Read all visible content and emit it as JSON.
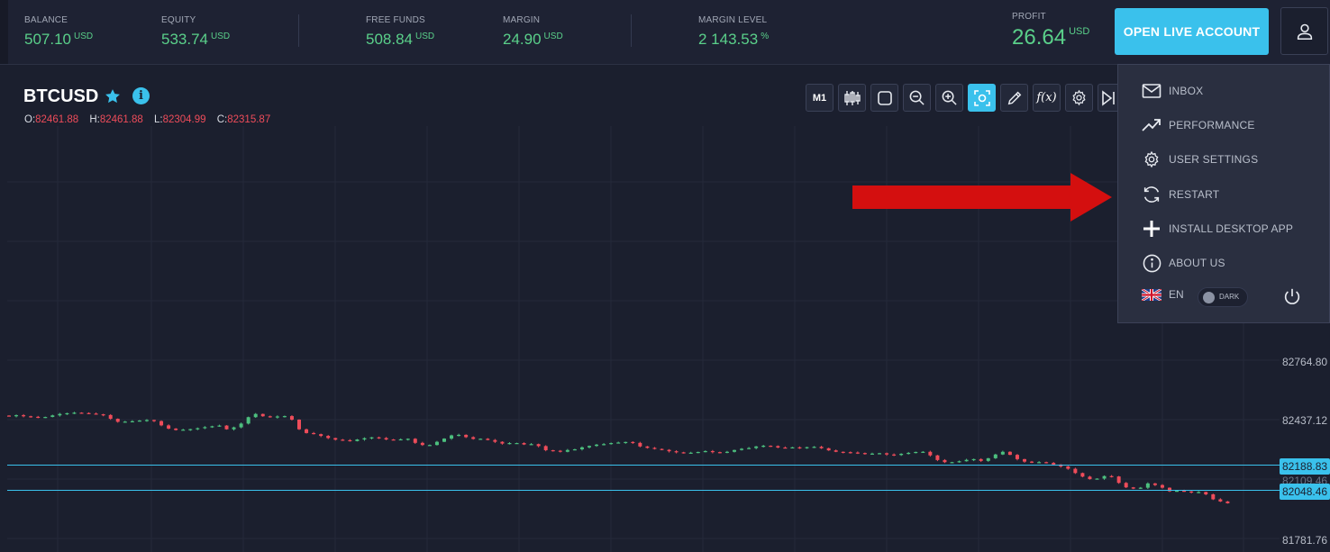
{
  "account_stats": {
    "balance": {
      "label": "BALANCE",
      "value": "507.10",
      "unit": "USD"
    },
    "equity": {
      "label": "EQUITY",
      "value": "533.74",
      "unit": "USD"
    },
    "free_funds": {
      "label": "FREE FUNDS",
      "value": "508.84",
      "unit": "USD"
    },
    "margin": {
      "label": "MARGIN",
      "value": "24.90",
      "unit": "USD"
    },
    "margin_level": {
      "label": "MARGIN LEVEL",
      "value": "2 143.53",
      "unit": "%"
    },
    "profit": {
      "label": "PROFIT",
      "value": "26.64",
      "unit": "USD"
    }
  },
  "header": {
    "open_live_label": "OPEN LIVE ACCOUNT",
    "user_icon": "user-icon"
  },
  "instrument": {
    "symbol": "BTCUSD",
    "ohlc": [
      {
        "key": "O:",
        "value": "82461.88"
      },
      {
        "key": "H:",
        "value": "82461.88"
      },
      {
        "key": "L:",
        "value": "82304.99"
      },
      {
        "key": "C:",
        "value": "82315.87"
      }
    ]
  },
  "toolbar": {
    "timeframe_label": "M1",
    "fx_label": "f(x)",
    "icons": [
      "candles-icon",
      "square-icon",
      "zoom-out-icon",
      "zoom-in-icon",
      "fit-screen-icon",
      "pencil-icon",
      "function-icon",
      "gear-icon",
      "skip-end-icon"
    ]
  },
  "menu": {
    "items": [
      {
        "label": "INBOX",
        "icon": "mail-icon"
      },
      {
        "label": "PERFORMANCE",
        "icon": "trend-up-icon"
      },
      {
        "label": "USER SETTINGS",
        "icon": "gear-icon"
      },
      {
        "label": "RESTART",
        "icon": "refresh-icon"
      },
      {
        "label": "INSTALL DESKTOP APP",
        "icon": "plus-icon"
      },
      {
        "label": "ABOUT US",
        "icon": "info-icon"
      }
    ],
    "language": "EN",
    "theme_label": "DARK",
    "power_icon": "power-icon"
  },
  "colors": {
    "accent": "#3ac1ec",
    "up": "#4cbf7e",
    "down": "#ee4c5a",
    "positive_text": "#5ad08a",
    "background": "#1b1f2e",
    "annotation_arrow": "#d40f0f"
  },
  "chart_data": {
    "type": "candlestick",
    "symbol": "BTCUSD",
    "y_tick_labels": [
      "82764.80",
      "82437.12",
      "81781.76"
    ],
    "price_lines": [
      "82188.83",
      "82048.46"
    ],
    "partially_hidden_label": "82109.46",
    "close_series": [
      82461.9,
      82467,
      82461,
      82458,
      82454,
      82457,
      82466,
      82474,
      82478,
      82481,
      82479,
      82476,
      82472,
      82468,
      82447,
      82430,
      82431,
      82433,
      82437,
      82440,
      82434,
      82410,
      82392,
      82384,
      82386,
      82389,
      82394,
      82400,
      82405,
      82409,
      82388,
      82399,
      82420,
      82456,
      82474,
      82461,
      82455,
      82460,
      82462,
      82442,
      82388,
      82367,
      82361,
      82351,
      82339,
      82330,
      82327,
      82322,
      82331,
      82338,
      82343,
      82339,
      82331,
      82329,
      82332,
      82335,
      82312,
      82300,
      82300,
      82318,
      82336,
      82354,
      82357,
      82344,
      82334,
      82335,
      82328,
      82318,
      82308,
      82311,
      82311,
      82303,
      82305,
      82294,
      82271,
      82268,
      82262,
      82272,
      82276,
      82287,
      82295,
      82302,
      82305,
      82311,
      82314,
      82317,
      82312,
      82292,
      82284,
      82278,
      82273,
      82265,
      82259,
      82257,
      82257,
      82261,
      82266,
      82260,
      82259,
      82262,
      82272,
      82279,
      82283,
      82292,
      82296,
      82294,
      82286,
      82285,
      82287,
      82285,
      82288,
      82290,
      82282,
      82270,
      82262,
      82260,
      82258,
      82255,
      82250,
      82252,
      82254,
      82247,
      82244,
      82251,
      82256,
      82261,
      82262,
      82242,
      82216,
      82204,
      82204,
      82209,
      82217,
      82221,
      82211,
      82226,
      82247,
      82262,
      82245,
      82221,
      82207,
      82204,
      82204,
      82200,
      82191,
      82180,
      82167,
      82143,
      82123,
      82109,
      82112,
      82126,
      82124,
      82088,
      82063,
      82056,
      82061,
      82085,
      82076,
      82061,
      82041,
      82044,
      82040,
      82036,
      82037,
      82024,
      81996,
      81984,
      81974
    ]
  }
}
